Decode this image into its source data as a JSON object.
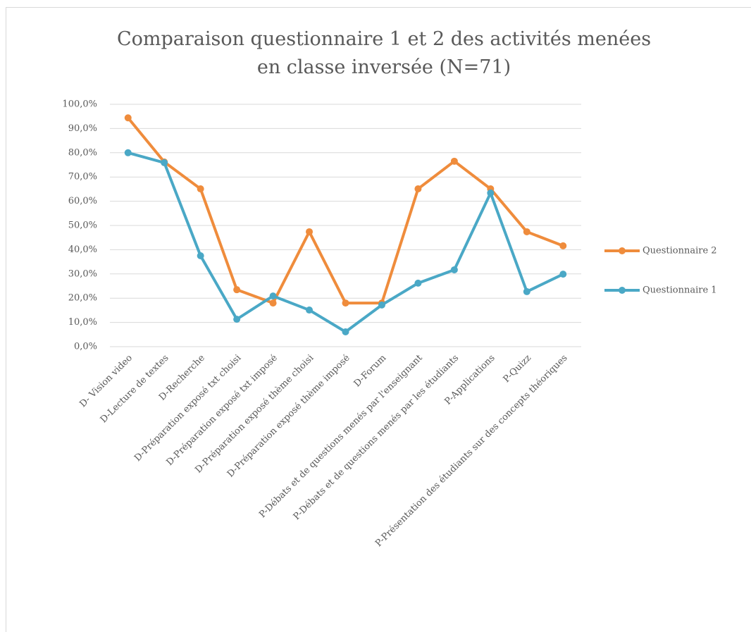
{
  "chart_data": {
    "type": "line",
    "title": "Comparaison questionnaire 1 et 2 des activités menées en classe inversée (N=71)",
    "categories": [
      "D- Vision video",
      "D-Lecture de textes",
      "D-Recherche",
      "D-Préparation exposé txt choisi",
      "D-Préparation exposé txt imposé",
      "D-Préparation exposé thème choisi",
      "D-Préparation exposé thème imposé",
      "D-Forum",
      "P-Débats et de questions menés par l'enseignant",
      "P-Débats et de questions menés par les étudiants",
      "P-Applications",
      "P-Quizz",
      "P-Présentation des étudiants sur des concepts théoriques"
    ],
    "series": [
      {
        "name": "Questionnaire 2",
        "color": "#ef8c3c",
        "values": [
          94.4,
          76.2,
          65.1,
          23.5,
          18.0,
          47.4,
          18.0,
          18.0,
          65.1,
          76.5,
          65.1,
          47.4,
          41.6
        ]
      },
      {
        "name": "Questionnaire 1",
        "color": "#4aa8c6",
        "values": [
          80.0,
          75.9,
          37.5,
          11.3,
          20.9,
          15.1,
          6.1,
          17.2,
          26.2,
          31.7,
          63.4,
          22.7,
          29.9
        ]
      }
    ],
    "ylim": [
      0,
      100
    ],
    "yticks": [
      {
        "value": 0,
        "label": "0,0%"
      },
      {
        "value": 10,
        "label": "10,0%"
      },
      {
        "value": 20,
        "label": "20,0%"
      },
      {
        "value": 30,
        "label": "30,0%"
      },
      {
        "value": 40,
        "label": "40,0%"
      },
      {
        "value": 50,
        "label": "50,0%"
      },
      {
        "value": 60,
        "label": "60,0%"
      },
      {
        "value": 70,
        "label": "70,0%"
      },
      {
        "value": 80,
        "label": "80,0%"
      },
      {
        "value": 90,
        "label": "90,0%"
      },
      {
        "value": 100,
        "label": "100,0%"
      }
    ],
    "grid": true,
    "legend": "right"
  }
}
